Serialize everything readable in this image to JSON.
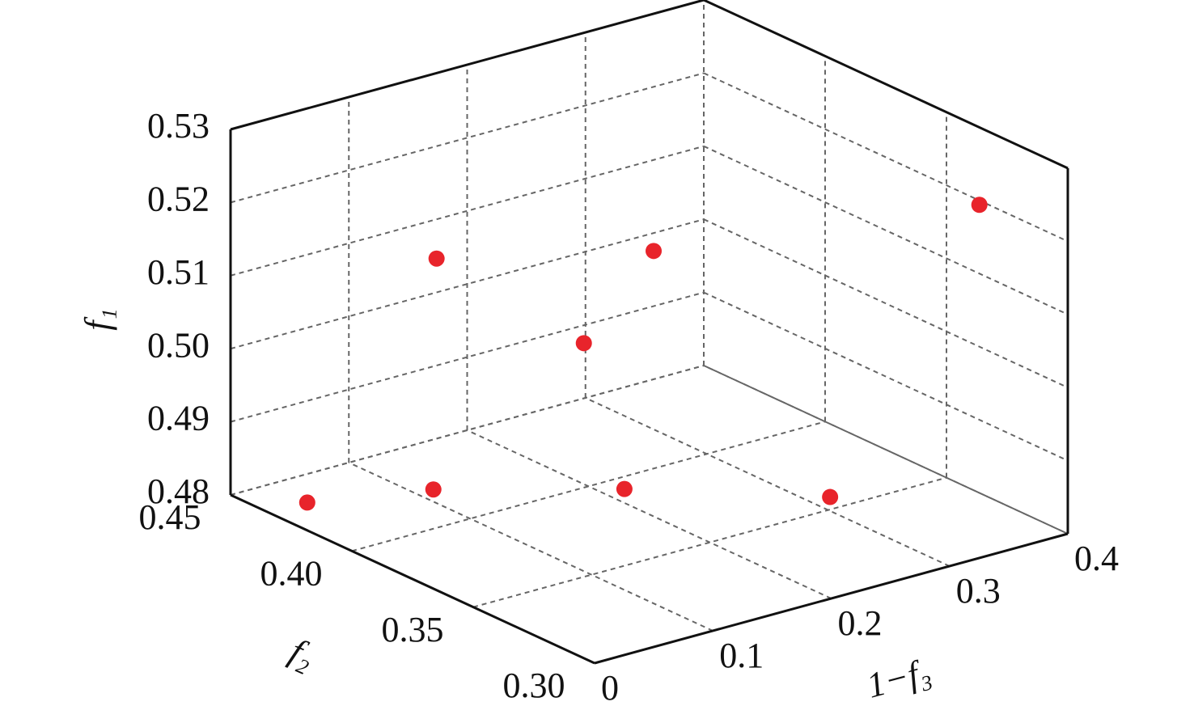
{
  "chart_data": {
    "type": "scatter3d",
    "xlabel": "f₂",
    "ylabel": "1−f₃",
    "zlabel": "f₁",
    "xlim": [
      0.3,
      0.45
    ],
    "ylim": [
      0,
      0.4
    ],
    "zlim": [
      0.48,
      0.53
    ],
    "xticks": [
      {
        "value": 0.3,
        "label": "0.30"
      },
      0.35,
      {
        "value": 0.4,
        "label": "0.40"
      },
      0.45
    ],
    "yticks": [
      0,
      0.1,
      0.2,
      0.3,
      0.4
    ],
    "zticks": [
      0.48,
      0.49,
      {
        "value": 0.5,
        "label": "0.50"
      },
      0.51,
      0.52,
      0.53
    ],
    "grid": true,
    "color": "#e8242b",
    "x": [
      0.434,
      0.422,
      0.393,
      0.357,
      0.428,
      0.399,
      0.399,
      0.334
    ],
    "y": [
      0.032,
      0.114,
      0.216,
      0.316,
      0.129,
      0.253,
      0.194,
      0.395
    ],
    "z": [
      0.48,
      0.48,
      0.48,
      0.48,
      0.51,
      0.51,
      0.5,
      0.52
    ]
  }
}
